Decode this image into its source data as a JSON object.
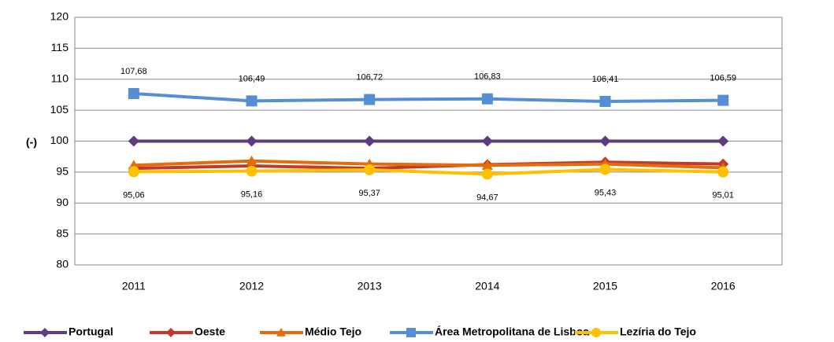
{
  "chart_data": {
    "type": "line",
    "y_label": "(-)",
    "categories": [
      "2011",
      "2012",
      "2013",
      "2014",
      "2015",
      "2016"
    ],
    "ylim": [
      80,
      120
    ],
    "yticks": [
      80,
      85,
      90,
      95,
      100,
      105,
      110,
      115,
      120
    ],
    "grid": true,
    "legend": "bottom",
    "series": [
      {
        "name": "Portugal",
        "color": "#5f3c7f",
        "marker": "diamond",
        "values": [
          100,
          100,
          100,
          100,
          100,
          100
        ]
      },
      {
        "name": "Oeste",
        "color": "#c0392b",
        "marker": "diamond",
        "values": [
          95.6,
          96.0,
          95.6,
          96.2,
          96.6,
          96.3
        ]
      },
      {
        "name": "Médio Tejo",
        "color": "#e46c0a",
        "marker": "triangle",
        "values": [
          96.1,
          96.8,
          96.3,
          96.1,
          96.3,
          95.7
        ]
      },
      {
        "name": "Área Metropolitana de Lisboa",
        "color": "#558ed5",
        "marker": "square",
        "values": [
          107.68,
          106.49,
          106.72,
          106.83,
          106.41,
          106.59
        ],
        "value_labels": [
          "107,68",
          "106,49",
          "106,72",
          "106,83",
          "106,41",
          "106,59"
        ],
        "label_pos": "above"
      },
      {
        "name": "Lezíria do Tejo",
        "color": "#ffc000",
        "marker": "circle",
        "values": [
          95.06,
          95.16,
          95.37,
          94.67,
          95.43,
          95.01
        ],
        "value_labels": [
          "95,06",
          "95,16",
          "95,37",
          "94,67",
          "95,43",
          "95,01"
        ],
        "label_pos": "below"
      }
    ]
  }
}
